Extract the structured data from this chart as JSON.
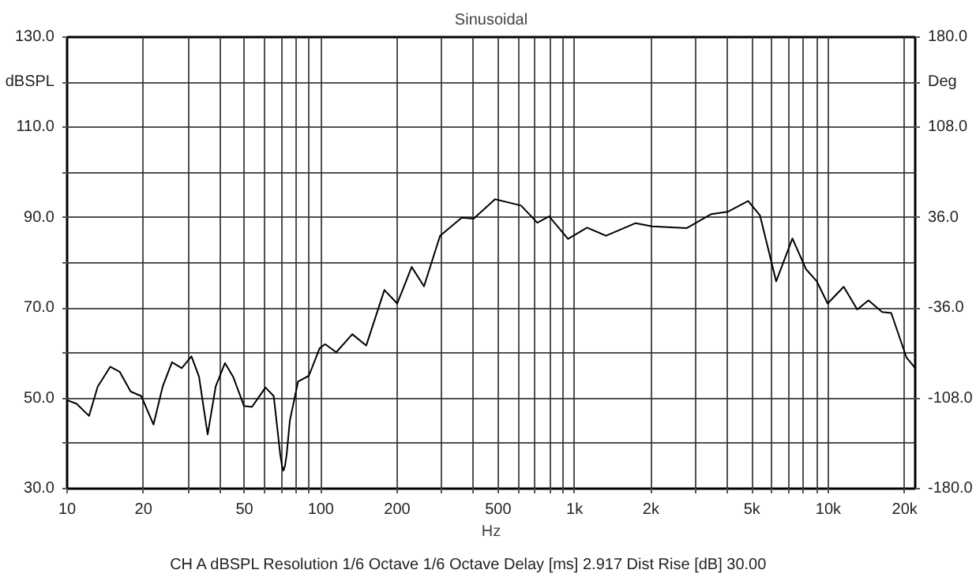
{
  "chart_data": {
    "type": "line",
    "title": "Sinusoidal",
    "xlabel": "Hz",
    "annotations": [
      "CH A   dBSPL   Resolution 1/6 Octave   1/6 Octave   Delay [ms] 2.917   Dist Rise [dB] 30.00"
    ],
    "log": "x",
    "grid": true,
    "xlim": [
      10,
      22000
    ],
    "xticks": [
      10,
      20,
      {
        "value": 30,
        "label": null
      },
      {
        "value": 40,
        "label": null
      },
      50,
      {
        "value": 60,
        "label": null
      },
      {
        "value": 70,
        "label": null
      },
      {
        "value": 80,
        "label": null
      },
      {
        "value": 90,
        "label": null
      },
      100,
      200,
      {
        "value": 300,
        "label": null
      },
      {
        "value": 400,
        "label": null
      },
      500,
      {
        "value": 600,
        "label": null
      },
      {
        "value": 700,
        "label": null
      },
      {
        "value": 800,
        "label": null
      },
      {
        "value": 900,
        "label": null
      },
      {
        "value": 1000,
        "label": "1k"
      },
      {
        "value": 2000,
        "label": "2k"
      },
      {
        "value": 3000,
        "label": null
      },
      {
        "value": 4000,
        "label": null
      },
      {
        "value": 5000,
        "label": "5k"
      },
      {
        "value": 6000,
        "label": null
      },
      {
        "value": 7000,
        "label": null
      },
      {
        "value": 8000,
        "label": null
      },
      {
        "value": 9000,
        "label": null
      },
      {
        "value": 10000,
        "label": "10k"
      },
      {
        "value": 20000,
        "label": "20k"
      }
    ],
    "ylim": [
      30,
      130
    ],
    "yticks": [
      {
        "value": 30,
        "label": "30.0"
      },
      {
        "value": 40,
        "label": null
      },
      {
        "value": 50,
        "label": "50.0"
      },
      {
        "value": 60,
        "label": null
      },
      {
        "value": 70,
        "label": "70.0"
      },
      {
        "value": 80,
        "label": null
      },
      {
        "value": 90,
        "label": "90.0"
      },
      {
        "value": 100,
        "label": null
      },
      {
        "value": 110,
        "label": "110.0"
      },
      {
        "value": 120,
        "label": "dBSPL"
      },
      {
        "value": 130,
        "label": "130.0"
      }
    ],
    "y2lim": [
      -180,
      180
    ],
    "y2ticks": [
      {
        "value": -180,
        "label": "-180.0"
      },
      {
        "value": -108,
        "label": "-108.0"
      },
      {
        "value": -36,
        "label": "-36.0"
      },
      {
        "value": 36,
        "label": "36.0"
      },
      {
        "value": 108,
        "label": "108.0"
      },
      {
        "value": 144,
        "label": "Deg"
      },
      {
        "value": 180,
        "label": "180.0"
      }
    ],
    "series": [
      {
        "color": "#000000",
        "x": [
          10,
          10.9,
          12.2,
          13.2,
          14.8,
          16.1,
          17.8,
          19.6,
          21.9,
          23.8,
          25.9,
          28.3,
          30.9,
          33.1,
          35.8,
          38.5,
          41.9,
          45.1,
          49.8,
          53.5,
          60.5,
          65.2,
          69.2,
          70.3,
          71.2,
          72.2,
          73.3,
          75.5,
          81.3,
          89.7,
          98.9,
          104,
          115,
          133,
          151,
          178,
          200,
          228,
          255,
          295,
          359,
          400,
          486,
          615,
          713,
          794,
          942,
          1120,
          1330,
          1740,
          2020,
          2770,
          3460,
          4010,
          4830,
          5380,
          6230,
          7220,
          8170,
          9010,
          9940,
          11500,
          13000,
          14400,
          16300,
          17700,
          20300,
          22000
        ],
        "values": [
          49.6,
          48.8,
          46.1,
          52.6,
          57.0,
          55.9,
          51.5,
          50.5,
          44.2,
          52.6,
          58.0,
          56.7,
          59.3,
          54.8,
          42.0,
          52.6,
          57.8,
          54.8,
          48.3,
          48.1,
          52.4,
          50.5,
          37.5,
          35.0,
          34.0,
          35.0,
          37.5,
          45.1,
          53.7,
          55.0,
          61.1,
          62.0,
          60.2,
          64.2,
          61.7,
          74.0,
          71.0,
          79.1,
          74.8,
          86.0,
          90.0,
          89.8,
          94.1,
          92.7,
          88.9,
          90.3,
          85.3,
          87.8,
          86.0,
          88.8,
          88.1,
          87.7,
          90.8,
          91.3,
          93.7,
          90.5,
          75.9,
          85.4,
          78.6,
          75.9,
          71.0,
          74.7,
          69.7,
          71.7,
          69.1,
          68.9,
          59.1,
          56.7
        ]
      }
    ]
  }
}
